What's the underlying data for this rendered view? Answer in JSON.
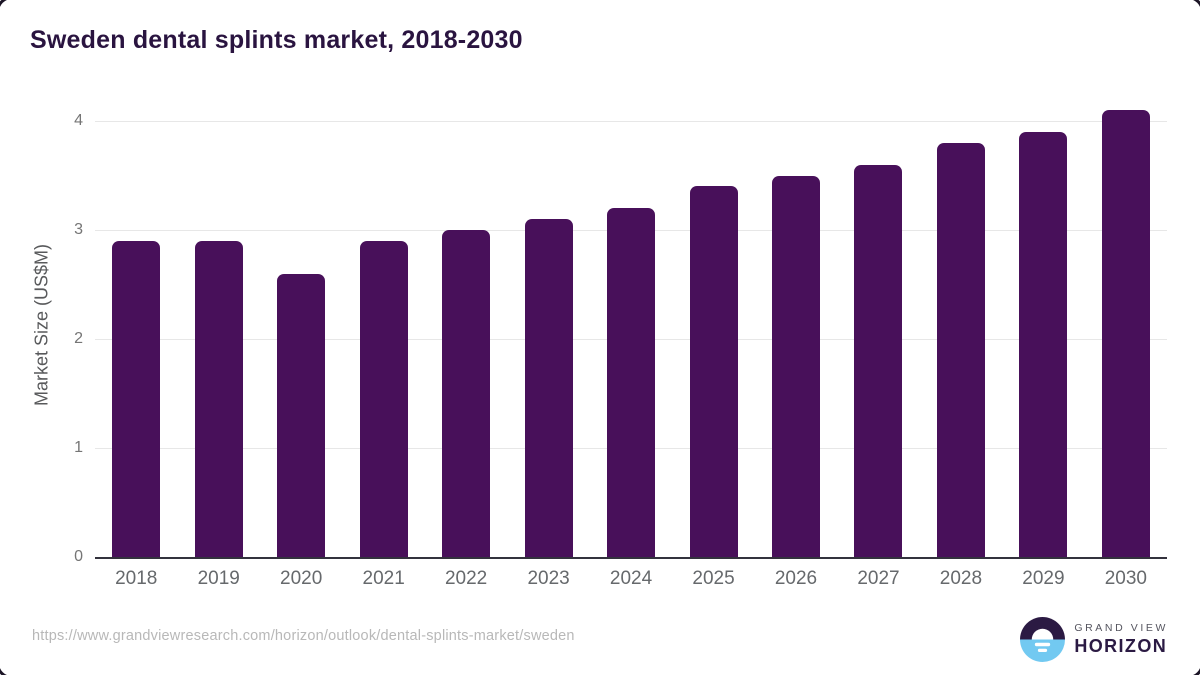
{
  "chart_data": {
    "type": "bar",
    "title": "Sweden dental splints market, 2018-2030",
    "categories": [
      "2018",
      "2019",
      "2020",
      "2021",
      "2022",
      "2023",
      "2024",
      "2025",
      "2026",
      "2027",
      "2028",
      "2029",
      "2030"
    ],
    "values": [
      2.9,
      2.9,
      2.6,
      2.9,
      3.0,
      3.1,
      3.2,
      3.4,
      3.5,
      3.6,
      3.8,
      3.9,
      4.1
    ],
    "xlabel": "",
    "ylabel": "Market Size (US$M)",
    "ylim": [
      0,
      4.2
    ],
    "yticks": [
      0,
      1,
      2,
      3,
      4
    ],
    "grid": "horizontal",
    "legend": "none",
    "bar_color": "#48105a"
  },
  "footer": {
    "source_url": "https://www.grandviewresearch.com/horizon/outlook/dental-splints-market/sweden",
    "logo": {
      "brand_top": "GRAND VIEW",
      "brand_bottom": "HORIZON",
      "icon": "horizon-sun-icon"
    }
  },
  "colors": {
    "title_text": "#2a1440",
    "bar": "#48105a",
    "axis_tick_text": "#757575",
    "x_label_text": "#66696c",
    "gridline": "#e7e7e7",
    "axis_line": "#33323d",
    "url_text": "#b8b8b8",
    "logo_dark": "#2b1a43",
    "logo_blue": "#72c9f1"
  }
}
